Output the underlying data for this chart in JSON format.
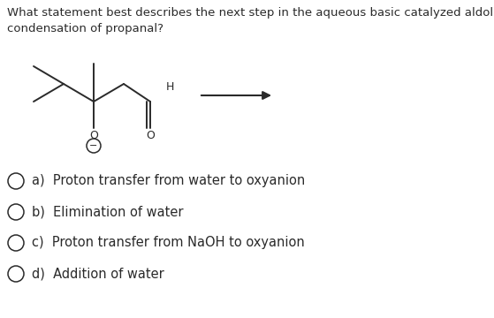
{
  "title_line1": "What statement best describes the next step in the aqueous basic catalyzed aldol",
  "title_line2": "condensation of propanal?",
  "options": [
    "a)  Proton transfer from water to oxyanion",
    "b)  Elimination of water",
    "c)  Proton transfer from NaOH to oxyanion",
    "d)  Addition of water"
  ],
  "bg_color": "#ffffff",
  "text_color": "#2a2a2a",
  "title_fontsize": 9.5,
  "option_fontsize": 10.5,
  "arrow_color": "#2a2a2a",
  "structure_color": "#2a2a2a",
  "structure_lw": 1.4
}
